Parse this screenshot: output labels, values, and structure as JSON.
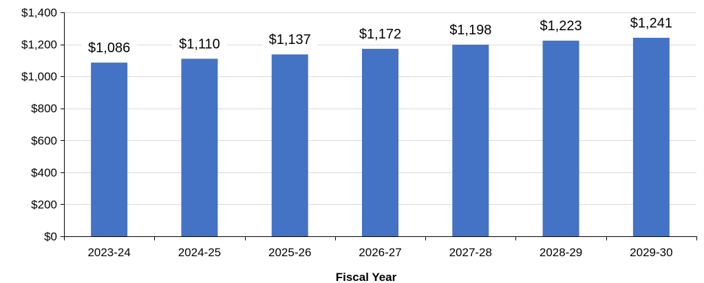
{
  "chart_data": {
    "type": "bar",
    "title": "",
    "xlabel": "Fiscal Year",
    "ylabel": "",
    "categories": [
      "2023-24",
      "2024-25",
      "2025-26",
      "2026-27",
      "2027-28",
      "2028-29",
      "2029-30"
    ],
    "values": [
      1086,
      1110,
      1137,
      1172,
      1198,
      1223,
      1241
    ],
    "data_labels": [
      "$1,086",
      "$1,110",
      "$1,137",
      "$1,172",
      "$1,198",
      "$1,223",
      "$1,241"
    ],
    "ylim": [
      0,
      1400
    ],
    "yticks": [
      0,
      200,
      400,
      600,
      800,
      1000,
      1200,
      1400
    ],
    "ytick_labels": [
      "$0",
      "$200",
      "$400",
      "$600",
      "$800",
      "$1,000",
      "$1,200",
      "$1,400"
    ],
    "grid": true,
    "legend": "none",
    "colors": {
      "bar": "#4472C4",
      "grid": "#D9D9D9",
      "axis": "#000000"
    }
  }
}
